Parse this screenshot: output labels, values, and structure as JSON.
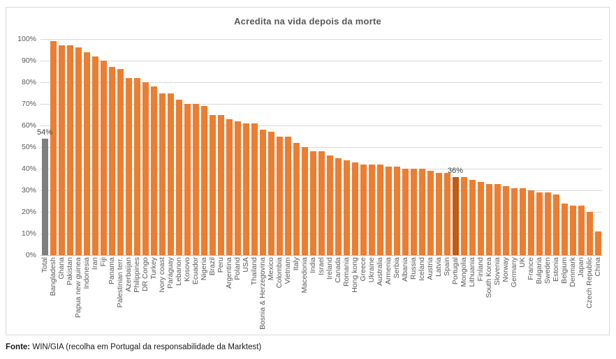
{
  "chart": {
    "title": "Acredita na vida depois da morte"
  },
  "footer": {
    "prefix": "Fonte:",
    "text": " WIN/GIA (recolha em Portugal da responsabilidade da Marktest)"
  },
  "chart_data": {
    "type": "bar",
    "title": "Acredita na vida depois da morte",
    "xlabel": "",
    "ylabel": "",
    "ylim": [
      0,
      100
    ],
    "yticks": [
      0,
      10,
      20,
      30,
      40,
      50,
      60,
      70,
      80,
      90,
      100
    ],
    "ytick_suffix": "%",
    "grid": true,
    "legend": false,
    "categories": [
      "Total",
      "Bangladesh",
      "Ghana",
      "Pakistan",
      "Papua new guinea",
      "Indonesia",
      "Iran",
      "Fiji",
      "Panama",
      "Palestinian terr.",
      "Azerbaijan",
      "Philippines",
      "DR Congo",
      "Turkey",
      "Ivory coast",
      "Paraguay",
      "Lebanon",
      "Kosovo",
      "Ecuador",
      "Nigeria",
      "Brazil",
      "Peru",
      "Argentina",
      "Poland",
      "USA",
      "Thailand",
      "Bosnia & Herzegovina",
      "Mexico",
      "Colombia",
      "Vietnam",
      "Italy",
      "Macedonia",
      "India",
      "Israel",
      "Ireland",
      "Canada",
      "Romania",
      "Hong kong",
      "Greece",
      "Ukraine",
      "Australia",
      "Armenia",
      "Serbia",
      "Albania",
      "Russia",
      "Iceland",
      "Austria",
      "Latvia",
      "Spain",
      "Portugal",
      "Mongolia",
      "Lithuania",
      "Finland",
      "South Korea",
      "Slovenia",
      "Norway",
      "Germany",
      "UK",
      "France",
      "Bulgaria",
      "Sweden",
      "Estonia",
      "Belgium",
      "Denmark",
      "Japan",
      "Czech Republic",
      "China"
    ],
    "values": [
      54,
      99,
      97,
      97,
      96,
      94,
      92,
      90,
      87,
      86,
      82,
      82,
      80,
      78,
      75,
      75,
      72,
      70,
      70,
      69,
      65,
      65,
      63,
      62,
      61,
      61,
      58,
      57,
      55,
      55,
      52,
      50,
      48,
      48,
      46,
      45,
      44,
      43,
      42,
      42,
      42,
      41,
      41,
      40,
      40,
      40,
      39,
      38,
      38,
      36,
      36,
      35,
      34,
      33,
      33,
      32,
      31,
      31,
      30,
      29,
      29,
      28,
      24,
      23,
      23,
      20,
      11
    ],
    "colors": {
      "default": "#ED7D31",
      "total_bar": "#7F7F7F",
      "highlight_bar": "#C55A11",
      "gridline": "#D9D9D9",
      "axis_text": "#595959",
      "title_text": "#595959",
      "data_label_text": "#404040"
    },
    "special_bars": {
      "total_index": 0,
      "highlight_index": 49
    },
    "annotations": [
      {
        "index": 0,
        "category": "Total",
        "label": "54%"
      },
      {
        "index": 49,
        "category": "Portugal",
        "label": "36%"
      }
    ]
  }
}
